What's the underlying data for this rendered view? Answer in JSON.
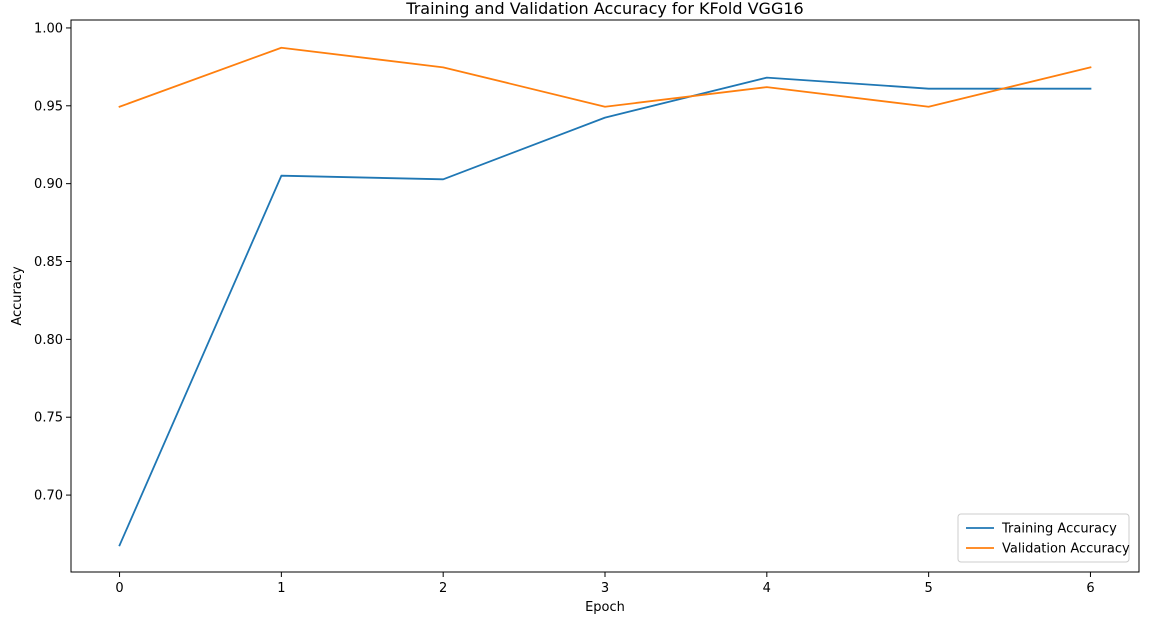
{
  "chart_data": {
    "type": "line",
    "title": "Training and Validation Accuracy for KFold VGG16",
    "xlabel": "Epoch",
    "ylabel": "Accuracy",
    "x": [
      0,
      1,
      2,
      3,
      4,
      5,
      6
    ],
    "xlim": [
      -0.3,
      6.3
    ],
    "ylim": [
      0.6506,
      1.0051
    ],
    "xticks": [
      0,
      1,
      2,
      3,
      4,
      5,
      6
    ],
    "yticks": [
      0.7,
      0.75,
      0.8,
      0.85,
      0.9,
      0.95,
      1.0
    ],
    "ytick_labels": [
      "0.70",
      "0.75",
      "0.80",
      "0.85",
      "0.90",
      "0.95",
      "1.00"
    ],
    "grid": false,
    "legend_position": "lower-right",
    "series": [
      {
        "name": "Training Accuracy",
        "color": "#1f77b4",
        "values": [
          0.6677,
          0.9051,
          0.9028,
          0.9424,
          0.9681,
          0.961,
          0.961
        ]
      },
      {
        "name": "Validation Accuracy",
        "color": "#ff7f0e",
        "values": [
          0.9494,
          0.9873,
          0.9747,
          0.9494,
          0.962,
          0.9494,
          0.9747
        ]
      }
    ]
  }
}
